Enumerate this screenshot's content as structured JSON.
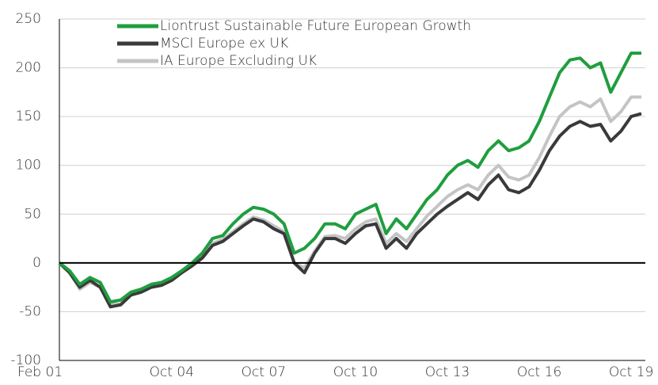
{
  "chart_data": {
    "type": "line",
    "categories": [
      "Feb 01",
      null,
      null,
      null,
      null,
      null,
      null,
      null,
      null,
      null,
      null,
      "Oct 04",
      null,
      null,
      null,
      null,
      null,
      null,
      null,
      null,
      "Oct 07",
      null,
      null,
      null,
      null,
      null,
      null,
      null,
      null,
      "Oct 10",
      null,
      null,
      null,
      null,
      null,
      null,
      null,
      null,
      "Oct 13",
      null,
      null,
      null,
      null,
      null,
      null,
      null,
      null,
      "Oct 16",
      null,
      null,
      null,
      null,
      null,
      null,
      null,
      null,
      "Oct 19",
      null
    ],
    "series": [
      {
        "name": "Liontrust Sustainable Future European Growth",
        "color": "#1f9e3f",
        "values": [
          0,
          -8,
          -22,
          -15,
          -20,
          -40,
          -38,
          -30,
          -27,
          -22,
          -20,
          -15,
          -8,
          0,
          10,
          25,
          28,
          40,
          50,
          57,
          55,
          50,
          40,
          10,
          15,
          25,
          40,
          40,
          35,
          50,
          55,
          60,
          30,
          45,
          35,
          50,
          65,
          75,
          90,
          100,
          105,
          98,
          115,
          125,
          115,
          118,
          125,
          145,
          170,
          195,
          208,
          210,
          200,
          205,
          175,
          195,
          215,
          215
        ]
      },
      {
        "name": "MSCI Europe ex UK",
        "color": "#3a3a3a",
        "values": [
          0,
          -10,
          -25,
          -18,
          -25,
          -45,
          -43,
          -33,
          -30,
          -25,
          -23,
          -18,
          -10,
          -3,
          5,
          18,
          22,
          30,
          38,
          45,
          42,
          35,
          30,
          0,
          -10,
          10,
          25,
          25,
          20,
          30,
          38,
          40,
          15,
          25,
          15,
          30,
          40,
          50,
          58,
          65,
          72,
          65,
          80,
          90,
          75,
          72,
          78,
          95,
          115,
          130,
          140,
          145,
          140,
          142,
          125,
          135,
          150,
          153
        ]
      },
      {
        "name": "IA Europe Excluding UK",
        "color": "#c4c4c4",
        "values": [
          0,
          -10,
          -27,
          -20,
          -25,
          -43,
          -42,
          -32,
          -28,
          -24,
          -22,
          -17,
          -9,
          -2,
          6,
          20,
          24,
          32,
          40,
          47,
          44,
          38,
          32,
          0,
          -5,
          12,
          27,
          28,
          25,
          35,
          42,
          45,
          20,
          30,
          22,
          35,
          48,
          58,
          68,
          75,
          80,
          75,
          90,
          100,
          88,
          85,
          90,
          108,
          130,
          150,
          160,
          165,
          160,
          168,
          145,
          155,
          170,
          170
        ]
      }
    ],
    "ylim": [
      -100,
      250
    ],
    "yticks": [
      -100,
      -50,
      0,
      50,
      100,
      150,
      200,
      250
    ],
    "grid": true,
    "legend": "upper left"
  }
}
